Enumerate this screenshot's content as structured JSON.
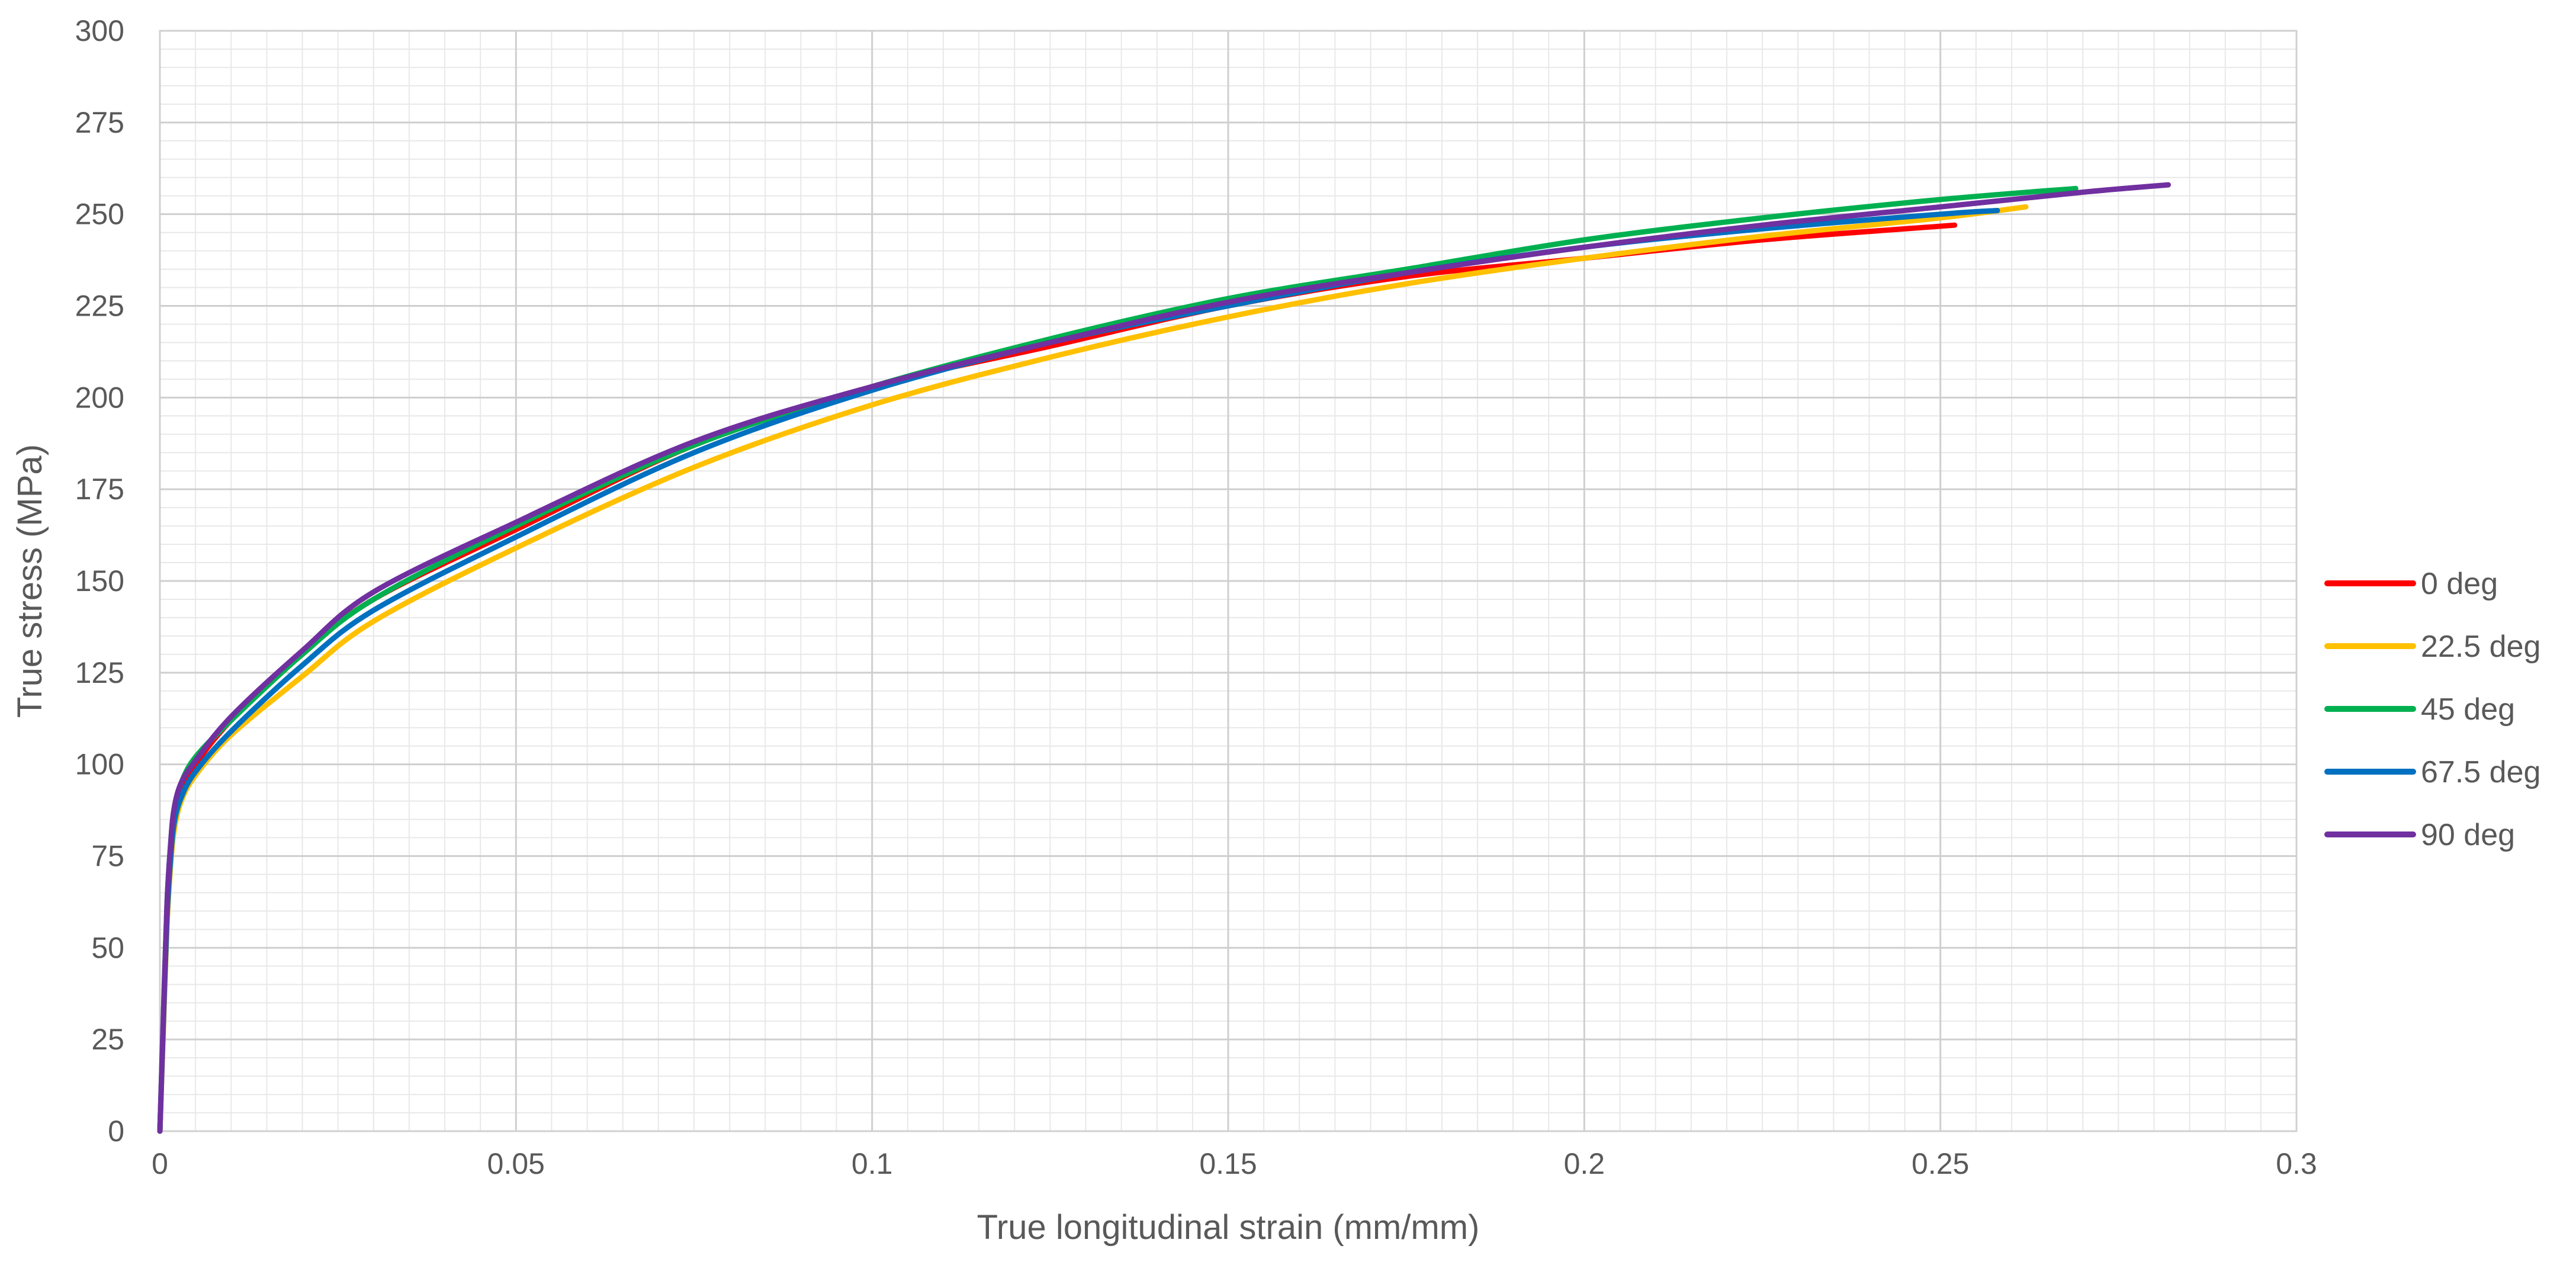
{
  "chart_data": {
    "type": "line",
    "title": "",
    "xlabel": "True longitudinal strain (mm/mm)",
    "ylabel": "True stress (MPa)",
    "xlim": [
      0,
      0.3
    ],
    "ylim": [
      0,
      300
    ],
    "x_ticks": [
      "0",
      "0.05",
      "0.1",
      "0.15",
      "0.2",
      "0.25",
      "0.3"
    ],
    "y_ticks": [
      "0",
      "25",
      "50",
      "75",
      "100",
      "125",
      "150",
      "175",
      "200",
      "225",
      "250",
      "275",
      "300"
    ],
    "grid": "major and minor",
    "legend_position": "right",
    "series": [
      {
        "name": "0 deg",
        "color": "#FF0000",
        "points": [
          [
            0,
            0
          ],
          [
            0.0005,
            30
          ],
          [
            0.001,
            60
          ],
          [
            0.0015,
            75
          ],
          [
            0.002,
            85
          ],
          [
            0.003,
            93
          ],
          [
            0.005,
            100
          ],
          [
            0.01,
            112
          ],
          [
            0.02,
            130
          ],
          [
            0.03,
            145
          ],
          [
            0.05,
            164
          ],
          [
            0.075,
            187
          ],
          [
            0.1,
            203
          ],
          [
            0.125,
            214
          ],
          [
            0.15,
            225
          ],
          [
            0.175,
            233
          ],
          [
            0.2,
            238
          ],
          [
            0.225,
            243
          ],
          [
            0.252,
            247
          ]
        ]
      },
      {
        "name": "22.5 deg",
        "color": "#FFC000",
        "points": [
          [
            0,
            0
          ],
          [
            0.0005,
            28
          ],
          [
            0.001,
            56
          ],
          [
            0.0015,
            72
          ],
          [
            0.002,
            82
          ],
          [
            0.003,
            90
          ],
          [
            0.005,
            97
          ],
          [
            0.01,
            108
          ],
          [
            0.02,
            124
          ],
          [
            0.03,
            139
          ],
          [
            0.05,
            159
          ],
          [
            0.075,
            181
          ],
          [
            0.1,
            198
          ],
          [
            0.125,
            211
          ],
          [
            0.15,
            222
          ],
          [
            0.175,
            231
          ],
          [
            0.2,
            238
          ],
          [
            0.225,
            244
          ],
          [
            0.25,
            249
          ],
          [
            0.262,
            252
          ]
        ]
      },
      {
        "name": "45 deg",
        "color": "#00B050",
        "points": [
          [
            0,
            0
          ],
          [
            0.0005,
            32
          ],
          [
            0.001,
            62
          ],
          [
            0.0015,
            78
          ],
          [
            0.002,
            88
          ],
          [
            0.003,
            95
          ],
          [
            0.005,
            102
          ],
          [
            0.01,
            112
          ],
          [
            0.02,
            130
          ],
          [
            0.03,
            145
          ],
          [
            0.05,
            165
          ],
          [
            0.075,
            187
          ],
          [
            0.1,
            203
          ],
          [
            0.125,
            216
          ],
          [
            0.15,
            227
          ],
          [
            0.175,
            235
          ],
          [
            0.2,
            243
          ],
          [
            0.225,
            249
          ],
          [
            0.25,
            254
          ],
          [
            0.269,
            257
          ]
        ]
      },
      {
        "name": "67.5 deg",
        "color": "#0070C0",
        "points": [
          [
            0,
            0
          ],
          [
            0.0005,
            30
          ],
          [
            0.001,
            58
          ],
          [
            0.0015,
            74
          ],
          [
            0.002,
            84
          ],
          [
            0.003,
            91
          ],
          [
            0.005,
            98
          ],
          [
            0.01,
            109
          ],
          [
            0.02,
            127
          ],
          [
            0.03,
            142
          ],
          [
            0.05,
            162
          ],
          [
            0.075,
            185
          ],
          [
            0.1,
            202
          ],
          [
            0.125,
            215
          ],
          [
            0.15,
            225
          ],
          [
            0.175,
            234
          ],
          [
            0.2,
            241
          ],
          [
            0.225,
            246
          ],
          [
            0.25,
            250
          ],
          [
            0.258,
            251
          ]
        ]
      },
      {
        "name": "90 deg",
        "color": "#7030A0",
        "points": [
          [
            0,
            0
          ],
          [
            0.0005,
            32
          ],
          [
            0.001,
            62
          ],
          [
            0.0015,
            78
          ],
          [
            0.002,
            88
          ],
          [
            0.003,
            95
          ],
          [
            0.005,
            101
          ],
          [
            0.01,
            113
          ],
          [
            0.02,
            131
          ],
          [
            0.03,
            147
          ],
          [
            0.05,
            166
          ],
          [
            0.075,
            188
          ],
          [
            0.1,
            203
          ],
          [
            0.125,
            215
          ],
          [
            0.15,
            226
          ],
          [
            0.175,
            234
          ],
          [
            0.2,
            241
          ],
          [
            0.225,
            247
          ],
          [
            0.25,
            252
          ],
          [
            0.27,
            256
          ],
          [
            0.282,
            258
          ]
        ]
      }
    ]
  }
}
